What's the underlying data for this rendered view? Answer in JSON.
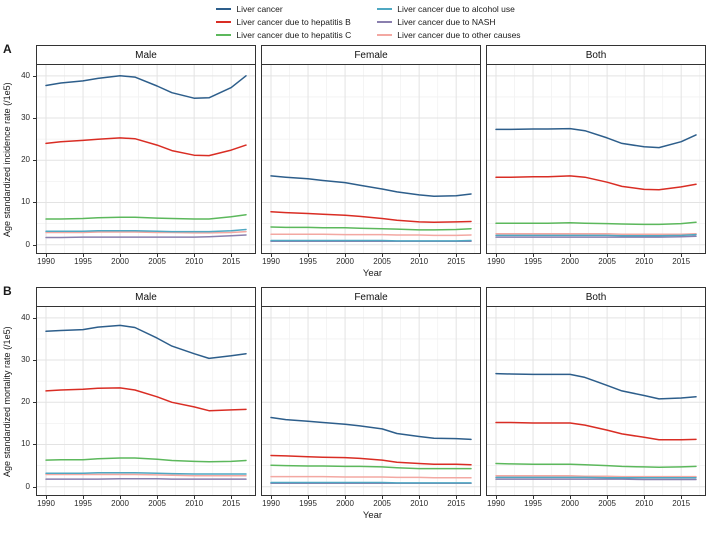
{
  "figure": {
    "panel_a_label": "A",
    "panel_b_label": "B"
  },
  "legend": {
    "items": [
      {
        "label": "Liver cancer",
        "color": "#2d5e8b"
      },
      {
        "label": "Liver cancer due to hepatitis B",
        "color": "#d92d24"
      },
      {
        "label": "Liver cancer due to hepatitis C",
        "color": "#5cb85c"
      },
      {
        "label": "Liver cancer due to alcohol use",
        "color": "#4fa8c2"
      },
      {
        "label": "Liver cancer due to NASH",
        "color": "#8a7fae"
      },
      {
        "label": "Liver cancer due to other causes",
        "color": "#f3a8a2"
      }
    ]
  },
  "chart_data": [
    {
      "type": "line",
      "row": "A",
      "ylabel": "Age standardized incidence rate (/1e5)",
      "xlabel": "Year",
      "xlim": [
        1988.65,
        2018.35
      ],
      "ylim": [
        -2.2,
        42.8
      ],
      "xticks": [
        1990,
        1995,
        2000,
        2005,
        2010,
        2015
      ],
      "yticks": [
        0,
        10,
        20,
        30,
        40
      ],
      "grid": "major-minor",
      "legend_position": "top",
      "x": [
        1990,
        1992,
        1995,
        1997,
        2000,
        2002,
        2005,
        2007,
        2010,
        2012,
        2015,
        2017
      ],
      "facets": [
        {
          "title": "Male",
          "series": [
            {
              "name": "Liver cancer",
              "color": "#2d5e8b",
              "values": [
                37.7,
                38.3,
                38.8,
                39.4,
                40.0,
                39.7,
                37.6,
                36.0,
                34.7,
                34.8,
                37.2,
                40.0
              ]
            },
            {
              "name": "Liver cancer due to hepatitis B",
              "color": "#d92d24",
              "values": [
                24.0,
                24.4,
                24.7,
                25.0,
                25.3,
                25.1,
                23.6,
                22.3,
                21.2,
                21.1,
                22.4,
                23.6
              ]
            },
            {
              "name": "Liver cancer due to hepatitis C",
              "color": "#5cb85c",
              "values": [
                6.1,
                6.1,
                6.2,
                6.4,
                6.5,
                6.5,
                6.3,
                6.2,
                6.1,
                6.1,
                6.6,
                7.1
              ]
            },
            {
              "name": "Liver cancer due to alcohol use",
              "color": "#4fa8c2",
              "values": [
                3.2,
                3.2,
                3.2,
                3.3,
                3.3,
                3.3,
                3.2,
                3.1,
                3.1,
                3.1,
                3.3,
                3.6
              ]
            },
            {
              "name": "Liver cancer due to NASH",
              "color": "#8a7fae",
              "values": [
                1.7,
                1.7,
                1.8,
                1.8,
                1.8,
                1.8,
                1.8,
                1.8,
                1.8,
                1.9,
                2.1,
                2.3
              ]
            },
            {
              "name": "Liver cancer due to other causes",
              "color": "#f3a8a2",
              "values": [
                2.9,
                2.9,
                2.9,
                3.0,
                3.0,
                3.0,
                2.9,
                2.9,
                2.8,
                2.8,
                2.9,
                3.1
              ]
            }
          ]
        },
        {
          "title": "Female",
          "series": [
            {
              "name": "Liver cancer",
              "color": "#2d5e8b",
              "values": [
                16.3,
                16.0,
                15.6,
                15.2,
                14.7,
                14.1,
                13.2,
                12.5,
                11.8,
                11.5,
                11.6,
                12.0
              ]
            },
            {
              "name": "Liver cancer due to hepatitis B",
              "color": "#d92d24",
              "values": [
                7.8,
                7.6,
                7.4,
                7.2,
                7.0,
                6.7,
                6.2,
                5.8,
                5.4,
                5.3,
                5.4,
                5.5
              ]
            },
            {
              "name": "Liver cancer due to hepatitis C",
              "color": "#5cb85c",
              "values": [
                4.2,
                4.1,
                4.1,
                4.0,
                4.0,
                3.9,
                3.8,
                3.7,
                3.5,
                3.5,
                3.6,
                3.8
              ]
            },
            {
              "name": "Liver cancer due to alcohol use",
              "color": "#4fa8c2",
              "values": [
                1.0,
                1.0,
                1.0,
                1.0,
                1.0,
                1.0,
                1.0,
                0.9,
                0.9,
                0.9,
                0.9,
                1.0
              ]
            },
            {
              "name": "Liver cancer due to NASH",
              "color": "#8a7fae",
              "values": [
                0.8,
                0.8,
                0.8,
                0.8,
                0.8,
                0.8,
                0.8,
                0.8,
                0.8,
                0.8,
                0.8,
                0.8
              ]
            },
            {
              "name": "Liver cancer due to other causes",
              "color": "#f3a8a2",
              "values": [
                2.5,
                2.5,
                2.5,
                2.5,
                2.4,
                2.4,
                2.4,
                2.3,
                2.3,
                2.2,
                2.2,
                2.3
              ]
            }
          ]
        },
        {
          "title": "Both",
          "series": [
            {
              "name": "Liver cancer",
              "color": "#2d5e8b",
              "values": [
                27.3,
                27.3,
                27.4,
                27.4,
                27.5,
                27.0,
                25.3,
                24.0,
                23.2,
                23.0,
                24.4,
                26.0
              ]
            },
            {
              "name": "Liver cancer due to hepatitis B",
              "color": "#d92d24",
              "values": [
                16.0,
                16.0,
                16.1,
                16.1,
                16.3,
                16.0,
                14.8,
                13.8,
                13.1,
                13.0,
                13.7,
                14.3
              ]
            },
            {
              "name": "Liver cancer due to hepatitis C",
              "color": "#5cb85c",
              "values": [
                5.1,
                5.1,
                5.1,
                5.1,
                5.2,
                5.1,
                5.0,
                4.9,
                4.8,
                4.8,
                5.0,
                5.3
              ]
            },
            {
              "name": "Liver cancer due to alcohol use",
              "color": "#4fa8c2",
              "values": [
                2.2,
                2.2,
                2.2,
                2.2,
                2.2,
                2.2,
                2.2,
                2.1,
                2.1,
                2.1,
                2.2,
                2.4
              ]
            },
            {
              "name": "Liver cancer due to NASH",
              "color": "#8a7fae",
              "values": [
                1.8,
                1.8,
                1.8,
                1.8,
                1.8,
                1.8,
                1.8,
                1.8,
                1.8,
                1.8,
                1.9,
                2.0
              ]
            },
            {
              "name": "Liver cancer due to other causes",
              "color": "#f3a8a2",
              "values": [
                2.6,
                2.6,
                2.6,
                2.6,
                2.6,
                2.6,
                2.6,
                2.5,
                2.5,
                2.5,
                2.5,
                2.6
              ]
            }
          ]
        }
      ]
    },
    {
      "type": "line",
      "row": "B",
      "ylabel": "Age standardized mortality rate (/1e5)",
      "xlabel": "Year",
      "xlim": [
        1988.65,
        2018.35
      ],
      "ylim": [
        -2.2,
        42.8
      ],
      "xticks": [
        1990,
        1995,
        2000,
        2005,
        2010,
        2015
      ],
      "yticks": [
        0,
        10,
        20,
        30,
        40
      ],
      "grid": "major-minor",
      "legend_position": "top",
      "x": [
        1990,
        1992,
        1995,
        1997,
        2000,
        2002,
        2005,
        2007,
        2010,
        2012,
        2015,
        2017
      ],
      "facets": [
        {
          "title": "Male",
          "series": [
            {
              "name": "Liver cancer",
              "color": "#2d5e8b",
              "values": [
                36.8,
                37.0,
                37.2,
                37.8,
                38.2,
                37.7,
                35.2,
                33.3,
                31.5,
                30.4,
                31.0,
                31.5
              ]
            },
            {
              "name": "Liver cancer due to hepatitis B",
              "color": "#d92d24",
              "values": [
                22.7,
                22.9,
                23.1,
                23.3,
                23.4,
                22.9,
                21.3,
                20.0,
                18.9,
                18.0,
                18.2,
                18.3
              ]
            },
            {
              "name": "Liver cancer due to hepatitis C",
              "color": "#5cb85c",
              "values": [
                6.3,
                6.4,
                6.4,
                6.6,
                6.8,
                6.8,
                6.5,
                6.2,
                6.0,
                5.9,
                6.0,
                6.2
              ]
            },
            {
              "name": "Liver cancer due to alcohol use",
              "color": "#4fa8c2",
              "values": [
                3.2,
                3.2,
                3.2,
                3.3,
                3.3,
                3.3,
                3.2,
                3.1,
                3.0,
                3.0,
                3.0,
                3.0
              ]
            },
            {
              "name": "Liver cancer due to NASH",
              "color": "#8a7fae",
              "values": [
                1.8,
                1.8,
                1.8,
                1.8,
                1.9,
                1.9,
                1.9,
                1.8,
                1.8,
                1.8,
                1.8,
                1.8
              ]
            },
            {
              "name": "Liver cancer due to other causes",
              "color": "#f3a8a2",
              "values": [
                2.9,
                2.9,
                2.9,
                2.9,
                2.9,
                2.9,
                2.8,
                2.7,
                2.6,
                2.6,
                2.6,
                2.6
              ]
            }
          ]
        },
        {
          "title": "Female",
          "series": [
            {
              "name": "Liver cancer",
              "color": "#2d5e8b",
              "values": [
                16.4,
                15.9,
                15.5,
                15.2,
                14.8,
                14.4,
                13.7,
                12.6,
                11.9,
                11.5,
                11.4,
                11.2
              ]
            },
            {
              "name": "Liver cancer due to hepatitis B",
              "color": "#d92d24",
              "values": [
                7.4,
                7.3,
                7.1,
                7.0,
                6.9,
                6.7,
                6.3,
                5.8,
                5.5,
                5.3,
                5.3,
                5.2
              ]
            },
            {
              "name": "Liver cancer due to hepatitis C",
              "color": "#5cb85c",
              "values": [
                5.1,
                5.0,
                4.9,
                4.9,
                4.8,
                4.8,
                4.7,
                4.5,
                4.3,
                4.3,
                4.3,
                4.3
              ]
            },
            {
              "name": "Liver cancer due to alcohol use",
              "color": "#4fa8c2",
              "values": [
                1.0,
                1.0,
                1.0,
                1.0,
                1.0,
                1.0,
                1.0,
                0.9,
                0.9,
                0.9,
                0.9,
                0.9
              ]
            },
            {
              "name": "Liver cancer due to NASH",
              "color": "#8a7fae",
              "values": [
                0.8,
                0.8,
                0.8,
                0.8,
                0.8,
                0.8,
                0.8,
                0.8,
                0.8,
                0.8,
                0.8,
                0.8
              ]
            },
            {
              "name": "Liver cancer due to other causes",
              "color": "#f3a8a2",
              "values": [
                2.4,
                2.4,
                2.4,
                2.4,
                2.3,
                2.3,
                2.3,
                2.2,
                2.2,
                2.1,
                2.1,
                2.1
              ]
            }
          ]
        },
        {
          "title": "Both",
          "series": [
            {
              "name": "Liver cancer",
              "color": "#2d5e8b",
              "values": [
                26.8,
                26.7,
                26.6,
                26.6,
                26.6,
                25.9,
                24.0,
                22.7,
                21.6,
                20.8,
                21.0,
                21.3
              ]
            },
            {
              "name": "Liver cancer due to hepatitis B",
              "color": "#d92d24",
              "values": [
                15.2,
                15.2,
                15.1,
                15.1,
                15.1,
                14.6,
                13.4,
                12.5,
                11.7,
                11.1,
                11.1,
                11.2
              ]
            },
            {
              "name": "Liver cancer due to hepatitis C",
              "color": "#5cb85c",
              "values": [
                5.5,
                5.4,
                5.3,
                5.3,
                5.3,
                5.2,
                5.0,
                4.8,
                4.7,
                4.6,
                4.7,
                4.8
              ]
            },
            {
              "name": "Liver cancer due to alcohol use",
              "color": "#4fa8c2",
              "values": [
                2.2,
                2.2,
                2.2,
                2.2,
                2.2,
                2.2,
                2.1,
                2.1,
                2.1,
                2.1,
                2.1,
                2.1
              ]
            },
            {
              "name": "Liver cancer due to NASH",
              "color": "#8a7fae",
              "values": [
                1.8,
                1.8,
                1.8,
                1.8,
                1.8,
                1.8,
                1.8,
                1.8,
                1.7,
                1.7,
                1.7,
                1.7
              ]
            },
            {
              "name": "Liver cancer due to other causes",
              "color": "#f3a8a2",
              "values": [
                2.6,
                2.6,
                2.6,
                2.6,
                2.6,
                2.5,
                2.5,
                2.4,
                2.4,
                2.4,
                2.4,
                2.4
              ]
            }
          ]
        }
      ]
    }
  ]
}
